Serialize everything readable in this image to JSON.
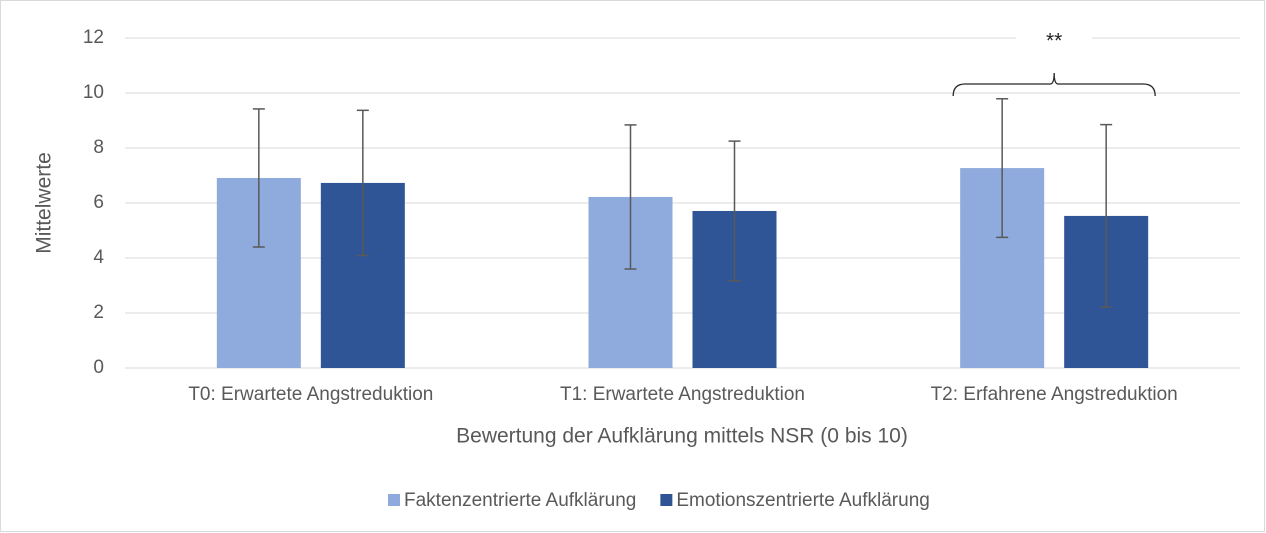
{
  "chart_data": {
    "type": "bar",
    "categories": [
      "T0: Erwartete Angstreduktion",
      "T1: Erwartete Angstreduktion",
      "T2: Erfahrene Angstreduktion"
    ],
    "series": [
      {
        "name": "Faktenzentrierte Aufklärung",
        "color": "#8faadc",
        "values": [
          6.91,
          6.22,
          7.27
        ],
        "errors": [
          2.51,
          2.62,
          2.52
        ]
      },
      {
        "name": "Emotionszentrierte Aufklärung",
        "color": "#2f5597",
        "values": [
          6.73,
          5.71,
          5.53
        ],
        "errors": [
          2.64,
          2.54,
          3.32
        ]
      }
    ],
    "xlabel": "Bewertung der Aufklärung mittels NSR (0 bis 10)",
    "ylabel": "Mittelwerte",
    "annotation": "**",
    "ylim": [
      0,
      12
    ],
    "yticks": [
      0,
      2,
      4,
      6,
      8,
      10,
      12
    ],
    "grid": true,
    "legend": "bottom"
  }
}
